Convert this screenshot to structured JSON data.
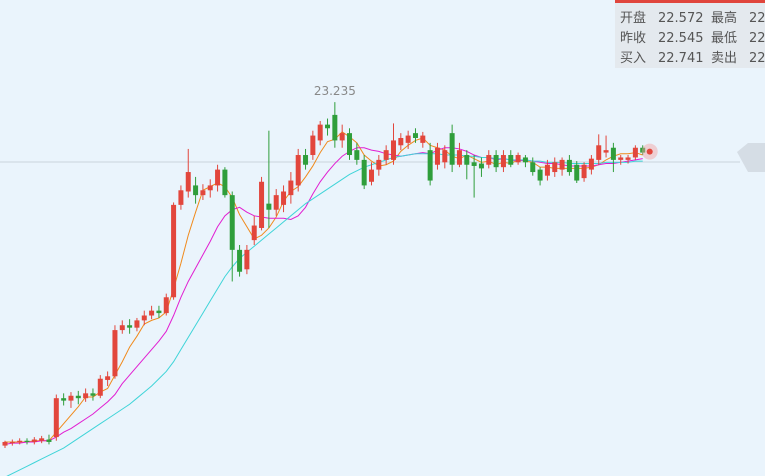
{
  "chart_data": {
    "type": "candlestick",
    "ylim": [
      20.16,
      24.075
    ],
    "up_color": "#e2463c",
    "down_color": "#2f9e3b",
    "open": [
      20.41,
      20.43,
      20.44,
      20.45,
      20.44,
      20.45,
      20.46,
      20.48,
      20.8,
      20.78,
      20.82,
      20.8,
      20.84,
      20.82,
      20.95,
      20.98,
      21.36,
      21.4,
      21.38,
      21.44,
      21.48,
      21.52,
      21.5,
      21.63,
      22.39,
      22.5,
      22.55,
      22.47,
      22.51,
      22.55,
      22.68,
      22.47,
      22.02,
      21.86,
      22.1,
      22.2,
      22.4,
      22.35,
      22.39,
      22.47,
      22.55,
      22.8,
      22.8,
      22.92,
      23.05,
      23.13,
      22.92,
      22.98,
      22.84,
      22.76,
      22.58,
      22.68,
      22.76,
      22.76,
      22.88,
      22.9,
      22.98,
      22.9,
      22.84,
      22.72,
      22.74,
      22.98,
      22.72,
      22.8,
      22.74,
      22.73,
      22.72,
      22.8,
      22.7,
      22.8,
      22.74,
      22.78,
      22.74,
      22.68,
      22.63,
      22.66,
      22.68,
      22.76,
      22.72,
      22.61,
      22.68,
      22.76,
      22.82,
      22.86,
      22.76,
      22.76,
      22.78,
      22.86
    ],
    "close": [
      20.44,
      20.44,
      20.45,
      20.44,
      20.46,
      20.47,
      20.44,
      20.8,
      20.78,
      20.82,
      20.8,
      20.84,
      20.82,
      20.96,
      20.98,
      21.36,
      21.4,
      21.38,
      21.44,
      21.48,
      21.52,
      21.5,
      21.63,
      22.39,
      22.51,
      22.66,
      22.47,
      22.51,
      22.55,
      22.68,
      22.47,
      22.02,
      21.84,
      22.02,
      22.22,
      22.58,
      22.35,
      22.47,
      22.5,
      22.59,
      22.8,
      22.72,
      22.96,
      23.05,
      23.02,
      22.92,
      22.98,
      22.8,
      22.76,
      22.55,
      22.68,
      22.76,
      22.84,
      22.92,
      22.94,
      22.96,
      22.94,
      22.96,
      22.59,
      22.86,
      22.84,
      22.72,
      22.84,
      22.72,
      22.71,
      22.69,
      22.8,
      22.7,
      22.8,
      22.72,
      22.8,
      22.74,
      22.66,
      22.59,
      22.72,
      22.74,
      22.76,
      22.66,
      22.59,
      22.72,
      22.77,
      22.88,
      22.84,
      22.76,
      22.78,
      22.78,
      22.86,
      22.82
    ],
    "low": [
      20.39,
      20.41,
      20.42,
      20.42,
      20.42,
      20.43,
      20.42,
      20.45,
      20.74,
      20.72,
      20.75,
      20.77,
      20.78,
      20.8,
      20.9,
      20.96,
      21.33,
      21.33,
      21.35,
      21.4,
      21.45,
      21.46,
      21.48,
      21.61,
      22.35,
      22.45,
      22.4,
      22.43,
      22.45,
      22.5,
      22.45,
      21.76,
      21.8,
      21.82,
      22.06,
      22.18,
      22.2,
      22.3,
      22.33,
      22.4,
      22.5,
      22.68,
      22.76,
      22.88,
      22.96,
      22.86,
      22.86,
      22.76,
      22.72,
      22.52,
      22.55,
      22.63,
      22.72,
      22.72,
      22.84,
      22.85,
      22.9,
      22.86,
      22.55,
      22.68,
      22.69,
      22.66,
      22.7,
      22.6,
      22.45,
      22.62,
      22.69,
      22.66,
      22.66,
      22.7,
      22.72,
      22.7,
      22.63,
      22.55,
      22.59,
      22.62,
      22.63,
      22.63,
      22.57,
      22.58,
      22.64,
      22.72,
      22.78,
      22.66,
      22.72,
      22.73,
      22.76,
      22.8
    ],
    "high": [
      20.45,
      20.46,
      20.47,
      20.47,
      20.48,
      20.49,
      20.5,
      20.83,
      20.84,
      20.85,
      20.86,
      20.88,
      20.88,
      20.99,
      21.02,
      21.4,
      21.44,
      21.45,
      21.46,
      21.52,
      21.56,
      21.56,
      21.66,
      22.41,
      22.55,
      22.85,
      22.62,
      22.56,
      22.6,
      22.72,
      22.7,
      22.5,
      22.06,
      22.06,
      22.3,
      22.62,
      23.0,
      22.52,
      22.55,
      22.66,
      22.85,
      22.85,
      23.0,
      23.08,
      23.1,
      23.235,
      23.05,
      23.02,
      22.9,
      22.8,
      22.74,
      22.8,
      22.88,
      23.06,
      22.98,
      23.0,
      23.02,
      22.99,
      22.9,
      22.9,
      22.88,
      23.05,
      22.9,
      22.84,
      22.8,
      22.78,
      22.84,
      22.84,
      22.84,
      22.84,
      22.82,
      22.8,
      22.78,
      22.7,
      22.76,
      22.78,
      22.78,
      22.8,
      22.75,
      22.74,
      22.8,
      22.97,
      22.96,
      22.9,
      22.8,
      22.8,
      22.88,
      22.88
    ],
    "series": [
      {
        "color": "#f08a1c",
        "values": [
          20.44,
          20.44,
          20.44,
          20.44,
          20.45,
          20.45,
          20.45,
          20.52,
          20.59,
          20.66,
          20.73,
          20.81,
          20.81,
          20.85,
          20.88,
          20.99,
          21.1,
          21.22,
          21.31,
          21.41,
          21.44,
          21.46,
          21.51,
          21.7,
          21.91,
          22.14,
          22.33,
          22.51,
          22.54,
          22.57,
          22.54,
          22.45,
          22.31,
          22.21,
          22.11,
          22.14,
          22.2,
          22.29,
          22.42,
          22.5,
          22.54,
          22.62,
          22.71,
          22.82,
          22.91,
          22.93,
          22.99,
          22.95,
          22.9,
          22.8,
          22.75,
          22.71,
          22.72,
          22.75,
          22.83,
          22.88,
          22.92,
          22.94,
          22.88,
          22.86,
          22.84,
          22.79,
          22.77,
          22.8,
          22.77,
          22.74,
          22.75,
          22.72,
          22.74,
          22.73,
          22.76,
          22.75,
          22.74,
          22.7,
          22.7,
          22.69,
          22.69,
          22.69,
          22.69,
          22.69,
          22.7,
          22.72,
          22.76,
          22.79,
          22.81,
          22.81,
          22.82,
          22.8
        ]
      },
      {
        "color": "#e11ed2",
        "values": [
          20.42,
          20.43,
          20.43,
          20.44,
          20.44,
          20.45,
          20.45,
          20.48,
          20.52,
          20.55,
          20.59,
          20.63,
          20.67,
          20.72,
          20.77,
          20.83,
          20.92,
          20.99,
          21.06,
          21.13,
          21.2,
          21.27,
          21.35,
          21.48,
          21.63,
          21.76,
          21.87,
          21.98,
          22.09,
          22.21,
          22.3,
          22.35,
          22.37,
          22.33,
          22.3,
          22.29,
          22.28,
          22.28,
          22.28,
          22.27,
          22.3,
          22.37,
          22.48,
          22.58,
          22.66,
          22.73,
          22.79,
          22.83,
          22.86,
          22.86,
          22.84,
          22.83,
          22.81,
          22.8,
          22.79,
          22.8,
          22.81,
          22.82,
          22.81,
          22.84,
          22.86,
          22.86,
          22.85,
          22.83,
          22.8,
          22.78,
          22.78,
          22.76,
          22.77,
          22.76,
          22.75,
          22.76,
          22.75,
          22.74,
          22.73,
          22.73,
          22.72,
          22.71,
          22.71,
          22.71,
          22.71,
          22.72,
          22.73,
          22.73,
          22.74,
          22.75,
          22.76,
          22.77
        ]
      },
      {
        "color": "#3fd4d8",
        "values": [
          20.15,
          20.18,
          20.21,
          20.24,
          20.27,
          20.3,
          20.33,
          20.36,
          20.39,
          20.43,
          20.47,
          20.51,
          20.55,
          20.59,
          20.63,
          20.67,
          20.71,
          20.75,
          20.8,
          20.85,
          20.9,
          20.96,
          21.02,
          21.1,
          21.2,
          21.3,
          21.4,
          21.5,
          21.6,
          21.7,
          21.8,
          21.88,
          21.95,
          22.0,
          22.05,
          22.1,
          22.15,
          22.2,
          22.25,
          22.3,
          22.35,
          22.4,
          22.44,
          22.48,
          22.52,
          22.56,
          22.6,
          22.64,
          22.67,
          22.7,
          22.72,
          22.74,
          22.76,
          22.78,
          22.79,
          22.8,
          22.81,
          22.81,
          22.81,
          22.81,
          22.8,
          22.8,
          22.8,
          22.79,
          22.79,
          22.78,
          22.78,
          22.77,
          22.77,
          22.76,
          22.76,
          22.76,
          22.75,
          22.75,
          22.74,
          22.74,
          22.74,
          22.73,
          22.73,
          22.73,
          22.73,
          22.73,
          22.74,
          22.74,
          22.74,
          22.74,
          22.75,
          22.75
        ]
      }
    ],
    "info": [
      [
        {
          "label": "开盘",
          "value": 22.572
        },
        {
          "label": "最高",
          "value": "22."
        }
      ],
      [
        {
          "label": "昨收",
          "value": 22.545
        },
        {
          "label": "最低",
          "value": "22."
        }
      ],
      [
        {
          "label": "买入",
          "value": 22.741
        },
        {
          "label": "卖出",
          "value": "22."
        }
      ]
    ]
  }
}
